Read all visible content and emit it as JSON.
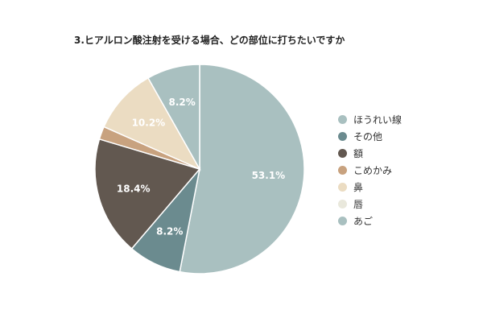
{
  "chart_data": {
    "type": "pie",
    "title": "3.ヒアルロン酸注射を受ける場合、どの部位に打ちたいですか",
    "legend_position": "right",
    "start_angle_deg": 0,
    "direction": "clockwise",
    "slices": [
      {
        "label": "ほうれい線",
        "value": 53.1,
        "value_label": "53.1%",
        "color": "#a9c0c0"
      },
      {
        "label": "その他",
        "value": 8.2,
        "value_label": "8.2%",
        "color": "#6b8b8f"
      },
      {
        "label": "額",
        "value": 18.4,
        "value_label": "18.4%",
        "color": "#625850"
      },
      {
        "label": "こめかみ",
        "value": 2.0,
        "value_label": "",
        "color": "#c8a27f"
      },
      {
        "label": "鼻",
        "value": 10.2,
        "value_label": "10.2%",
        "color": "#ebdcc2"
      },
      {
        "label": "唇",
        "value": 0,
        "value_label": "",
        "color": "#e9e8dc"
      },
      {
        "label": "あご",
        "value": 8.2,
        "value_label": "8.2%",
        "color": "#a9c0c0"
      }
    ]
  }
}
